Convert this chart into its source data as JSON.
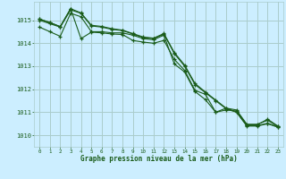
{
  "bg_color": "#cceeff",
  "grid_color": "#aacccc",
  "line_color": "#1a5c1a",
  "marker": "+",
  "xlabel": "Graphe pression niveau de la mer (hPa)",
  "tick_color": "#1a5c1a",
  "xlim": [
    -0.5,
    23.5
  ],
  "ylim": [
    1009.5,
    1015.8
  ],
  "yticks": [
    1010,
    1011,
    1012,
    1013,
    1014,
    1015
  ],
  "xticks": [
    0,
    1,
    2,
    3,
    4,
    5,
    6,
    7,
    8,
    9,
    10,
    11,
    12,
    13,
    14,
    15,
    16,
    17,
    18,
    19,
    20,
    21,
    22,
    23
  ],
  "series": [
    [
      1014.7,
      1014.5,
      1014.3,
      1015.3,
      1015.15,
      1014.5,
      1014.5,
      1014.45,
      1014.45,
      1014.35,
      1014.2,
      1014.15,
      1014.35,
      1013.1,
      1012.75,
      1011.9,
      1011.55,
      1011.0,
      1011.1,
      1011.05,
      1010.45,
      1010.45,
      1010.7,
      1010.4
    ],
    [
      1015.0,
      1014.85,
      1014.7,
      1015.45,
      1015.3,
      1014.75,
      1014.7,
      1014.6,
      1014.55,
      1014.4,
      1014.25,
      1014.2,
      1014.4,
      1013.55,
      1013.0,
      1012.2,
      1011.85,
      1011.5,
      1011.15,
      1011.0,
      1010.4,
      1010.4,
      1010.5,
      1010.35
    ],
    [
      1015.05,
      1014.9,
      1014.72,
      1015.5,
      1015.32,
      1014.78,
      1014.73,
      1014.63,
      1014.57,
      1014.42,
      1014.27,
      1014.22,
      1014.42,
      1013.6,
      1013.05,
      1012.25,
      1011.88,
      1011.53,
      1011.18,
      1011.02,
      1010.42,
      1010.42,
      1010.52,
      1010.37
    ],
    [
      1015.05,
      1014.9,
      1014.72,
      1015.5,
      1014.2,
      1014.48,
      1014.45,
      1014.4,
      1014.38,
      1014.12,
      1014.05,
      1014.0,
      1014.12,
      1013.3,
      1012.82,
      1011.95,
      1011.78,
      1011.0,
      1011.18,
      1011.1,
      1010.48,
      1010.48,
      1010.65,
      1010.38
    ]
  ]
}
